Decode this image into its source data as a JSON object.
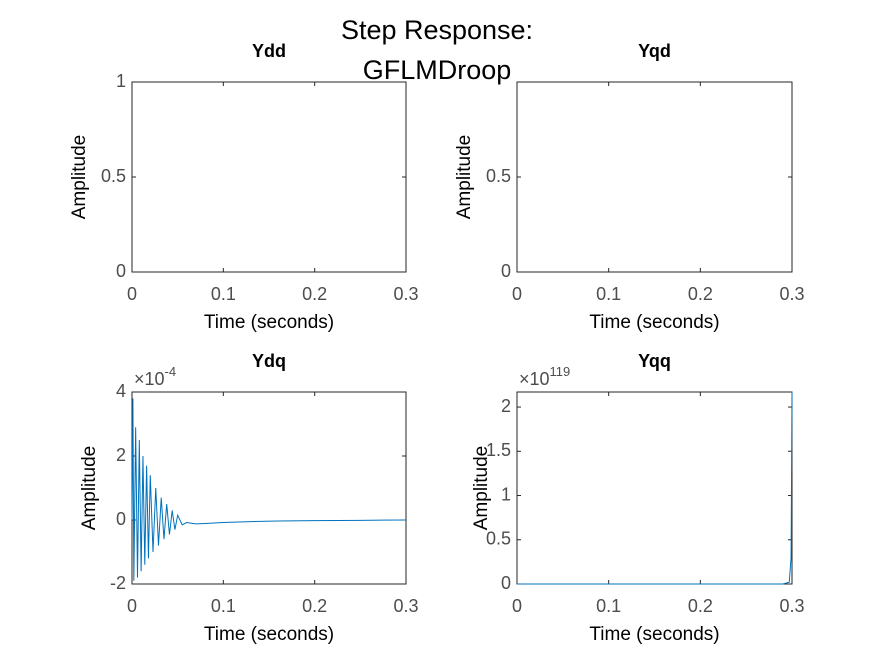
{
  "figure_title": [
    "Step Response:",
    "GFLMDroop"
  ],
  "chart_data": [
    {
      "type": "line",
      "title": "Ydd",
      "xlabel": "Time (seconds)",
      "ylabel": "Amplitude",
      "xlim": [
        0,
        0.3
      ],
      "xticks": [
        0,
        0.1,
        0.2,
        0.3
      ],
      "ylim": [
        0,
        1
      ],
      "yticks": [
        0,
        0.5,
        1
      ]
    },
    {
      "type": "line",
      "title": "Yqd",
      "xlabel": "Time (seconds)",
      "ylabel": "Amplitude",
      "xlim": [
        0,
        0.3
      ],
      "xticks": [
        0,
        0.1,
        0.2,
        0.3
      ],
      "ylim": [
        0,
        1
      ],
      "yticks": [
        0,
        0.5
      ]
    },
    {
      "type": "line",
      "title": "Ydq",
      "xlabel": "Time (seconds)",
      "ylabel": "Amplitude",
      "y_exponent": {
        "base": "×10",
        "power": "-4"
      },
      "xlim": [
        0,
        0.3
      ],
      "xticks": [
        0,
        0.1,
        0.2,
        0.3
      ],
      "ylim": [
        -2,
        4
      ],
      "yticks": [
        -2,
        0,
        2,
        4
      ],
      "x": [
        0,
        0.001,
        0.002,
        0.004,
        0.006,
        0.008,
        0.01,
        0.012,
        0.014,
        0.016,
        0.018,
        0.02,
        0.023,
        0.026,
        0.029,
        0.032,
        0.035,
        0.038,
        0.041,
        0.044,
        0.047,
        0.05,
        0.055,
        0.06,
        0.065,
        0.07,
        0.08,
        0.1,
        0.13,
        0.16,
        0.2,
        0.25,
        0.3
      ],
      "series": [
        {
          "color": "#0072bd",
          "values": [
            0,
            3.8,
            -1.9,
            2.9,
            -1.8,
            2.5,
            -1.6,
            2.0,
            -1.4,
            1.7,
            -1.2,
            1.4,
            -1.0,
            1.0,
            -0.8,
            0.7,
            -0.6,
            0.5,
            -0.45,
            0.3,
            -0.3,
            0.15,
            -0.15,
            -0.08,
            -0.1,
            -0.12,
            -0.11,
            -0.08,
            -0.05,
            -0.03,
            -0.02,
            -0.01,
            0
          ]
        }
      ]
    },
    {
      "type": "line",
      "title": "Yqq",
      "xlabel": "Time (seconds)",
      "ylabel": "Amplitude",
      "y_exponent": {
        "base": "×10",
        "power": "119"
      },
      "xlim": [
        0,
        0.3
      ],
      "xticks": [
        0,
        0.1,
        0.2,
        0.3
      ],
      "ylim": [
        0,
        2.17
      ],
      "yticks": [
        0,
        0.5,
        1,
        1.5,
        2
      ],
      "x": [
        0,
        0.29,
        0.297,
        0.299,
        0.3
      ],
      "series": [
        {
          "color": "#0072bd",
          "values": [
            0,
            0,
            0.02,
            0.3,
            2.17
          ]
        }
      ]
    }
  ]
}
